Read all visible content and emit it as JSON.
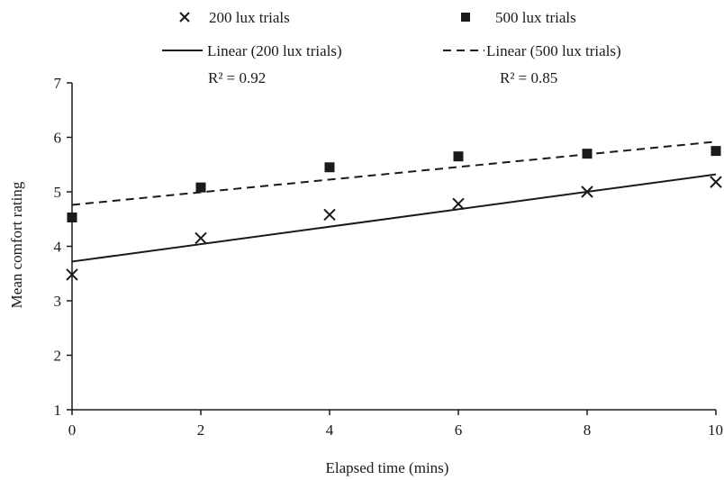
{
  "chart_data": {
    "type": "scatter",
    "title": "",
    "xlabel": "Elapsed time (mins)",
    "ylabel": "Mean comfort rating",
    "xlim": [
      0,
      10
    ],
    "ylim": [
      1,
      7
    ],
    "xticks": [
      "0",
      "2",
      "4",
      "6",
      "8",
      "10"
    ],
    "yticks": [
      "1",
      "2",
      "3",
      "4",
      "5",
      "6",
      "7"
    ],
    "grid": false,
    "legend_position": "top",
    "series": [
      {
        "name": "200 lux trials",
        "marker": "x",
        "color": "#1a1a1a",
        "x": [
          0,
          2,
          4,
          6,
          8,
          10
        ],
        "y": [
          3.48,
          4.15,
          4.58,
          4.78,
          5.0,
          5.18
        ]
      },
      {
        "name": "500 lux trials",
        "marker": "square",
        "color": "#1a1a1a",
        "x": [
          0,
          2,
          4,
          6,
          8,
          10
        ],
        "y": [
          4.53,
          5.08,
          5.45,
          5.65,
          5.7,
          5.75
        ]
      }
    ],
    "trendlines": [
      {
        "name": "Linear (200 lux trials)",
        "style": "solid",
        "r2_label": "R² = 0.92",
        "x": [
          0,
          10
        ],
        "y": [
          3.72,
          5.32
        ]
      },
      {
        "name": "Linear (500 lux trials)",
        "style": "dashed",
        "r2_label": "R² = 0.85",
        "x": [
          0,
          10
        ],
        "y": [
          4.76,
          5.92
        ]
      }
    ]
  }
}
